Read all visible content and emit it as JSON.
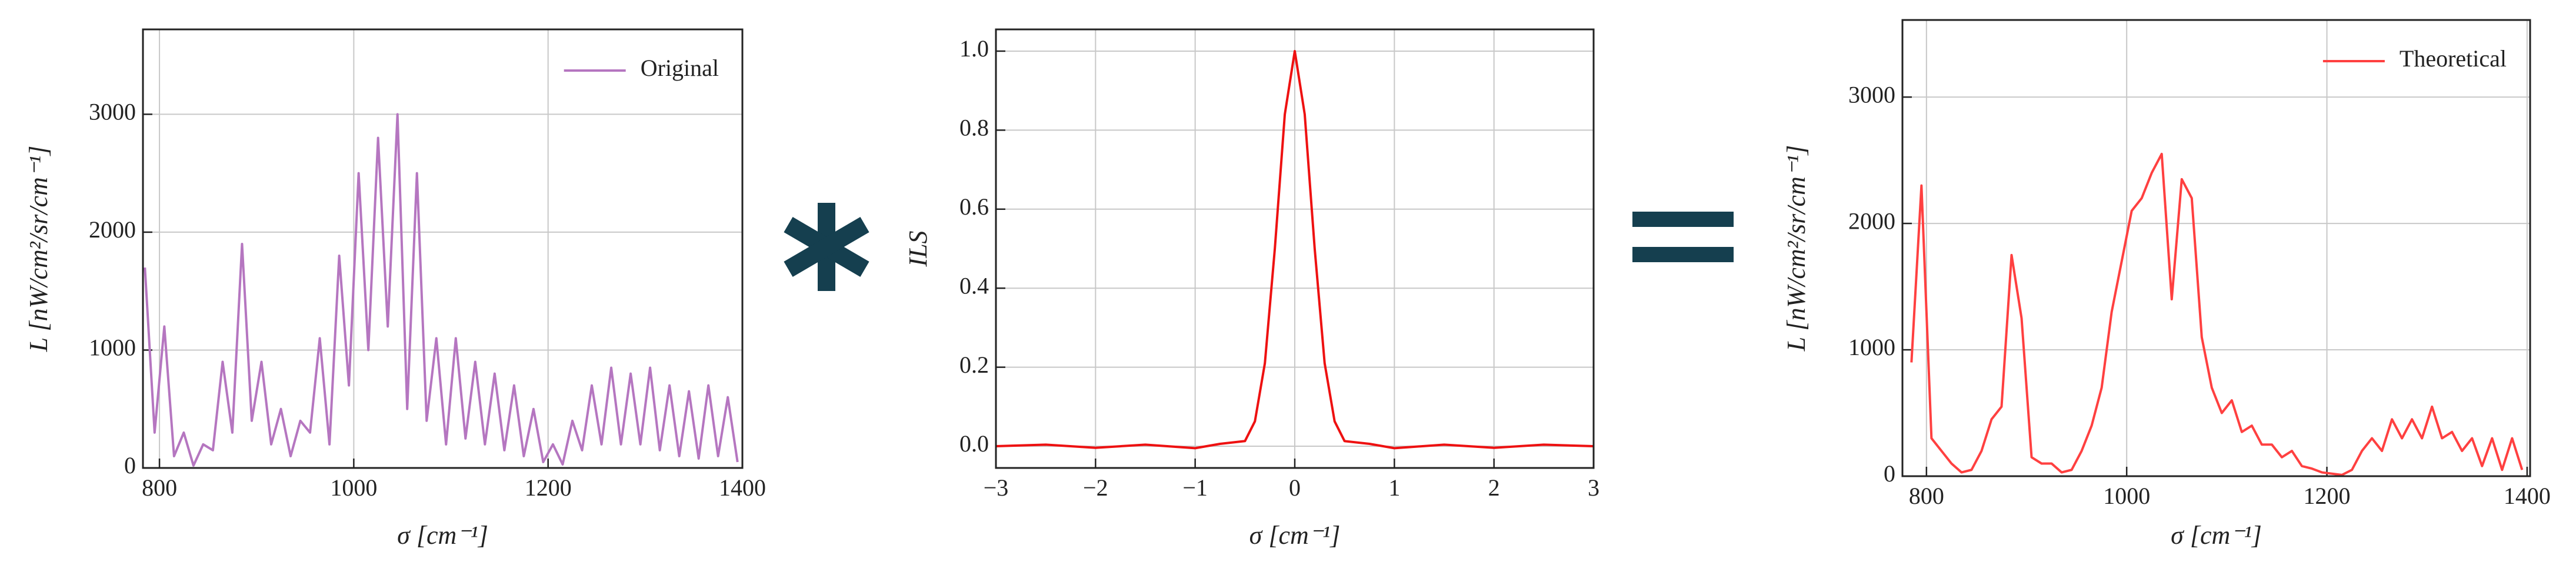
{
  "chart_data": [
    {
      "type": "line",
      "xlabel": "σ [cm⁻¹]",
      "ylabel": "L [nW/cm²/sr/cm⁻¹]",
      "xlim": [
        783,
        1400
      ],
      "ylim": [
        0,
        3720
      ],
      "xticks": [
        800,
        1000,
        1200,
        1400
      ],
      "yticks": [
        0,
        1000,
        2000,
        3000
      ],
      "grid": true,
      "legend": "upper right",
      "x": [
        785,
        795,
        805,
        815,
        825,
        835,
        845,
        855,
        865,
        875,
        885,
        895,
        905,
        915,
        925,
        935,
        945,
        955,
        965,
        975,
        985,
        995,
        1005,
        1015,
        1025,
        1035,
        1045,
        1055,
        1065,
        1075,
        1085,
        1095,
        1105,
        1115,
        1125,
        1135,
        1145,
        1155,
        1165,
        1175,
        1185,
        1195,
        1205,
        1215,
        1225,
        1235,
        1245,
        1255,
        1265,
        1275,
        1285,
        1295,
        1305,
        1315,
        1325,
        1335,
        1345,
        1355,
        1365,
        1375,
        1385,
        1395
      ],
      "series": [
        {
          "name": "Original",
          "color": "#b576c0",
          "values": [
            1700,
            300,
            1200,
            100,
            300,
            20,
            200,
            150,
            900,
            300,
            1900,
            400,
            900,
            200,
            500,
            100,
            400,
            300,
            1100,
            200,
            1800,
            700,
            2500,
            1000,
            2800,
            1200,
            3000,
            500,
            2500,
            400,
            1100,
            200,
            1100,
            250,
            900,
            200,
            800,
            150,
            700,
            100,
            500,
            50,
            200,
            30,
            400,
            150,
            700,
            200,
            850,
            200,
            800,
            200,
            850,
            150,
            700,
            100,
            650,
            80,
            700,
            100,
            600,
            50
          ]
        }
      ]
    },
    {
      "type": "line",
      "xlabel": "σ [cm⁻¹]",
      "ylabel": "ILS",
      "xlim": [
        -3,
        3
      ],
      "ylim": [
        -0.055,
        1.055
      ],
      "xticks": [
        {
          "value": -3,
          "label": "−3"
        },
        {
          "value": -2,
          "label": "−2"
        },
        {
          "value": -1,
          "label": "−1"
        },
        0,
        1,
        2,
        3
      ],
      "yticks": [
        {
          "value": 0,
          "label": "0.0"
        },
        0.2,
        0.4,
        0.6,
        0.8,
        {
          "value": 1,
          "label": "1.0"
        }
      ],
      "grid": true,
      "x": [
        -3,
        -2.5,
        -2,
        -1.5,
        -1,
        -0.75,
        -0.5,
        -0.4,
        -0.3,
        -0.2,
        -0.1,
        0,
        0.1,
        0.2,
        0.3,
        0.4,
        0.5,
        0.75,
        1,
        1.5,
        2,
        2.5,
        3
      ],
      "series": [
        {
          "color": "#ee1111",
          "values": [
            0,
            0.004,
            -0.004,
            0.004,
            -0.005,
            0.006,
            0.013,
            0.063,
            0.21,
            0.5,
            0.84,
            1,
            0.84,
            0.5,
            0.21,
            0.063,
            0.013,
            0.006,
            -0.005,
            0.004,
            -0.004,
            0.004,
            0
          ]
        }
      ]
    },
    {
      "type": "line",
      "xlabel": "σ [cm⁻¹]",
      "ylabel": "L [nW/cm²/sr/cm⁻¹]",
      "xlim": [
        776,
        1403
      ],
      "ylim": [
        0,
        3610
      ],
      "xticks": [
        800,
        1000,
        1200,
        1400
      ],
      "yticks": [
        0,
        1000,
        2000,
        3000
      ],
      "grid": true,
      "legend": "upper right",
      "x": [
        785,
        795,
        805,
        815,
        825,
        835,
        845,
        855,
        865,
        875,
        885,
        895,
        905,
        915,
        925,
        935,
        945,
        955,
        965,
        975,
        985,
        995,
        1005,
        1015,
        1025,
        1035,
        1045,
        1055,
        1065,
        1075,
        1085,
        1095,
        1105,
        1115,
        1125,
        1135,
        1145,
        1155,
        1165,
        1175,
        1185,
        1195,
        1205,
        1215,
        1225,
        1235,
        1245,
        1255,
        1265,
        1275,
        1285,
        1295,
        1305,
        1315,
        1325,
        1335,
        1345,
        1355,
        1365,
        1375,
        1385,
        1395
      ],
      "series": [
        {
          "name": "Theoretical",
          "color": "#ff4040",
          "values": [
            900,
            2300,
            300,
            200,
            100,
            30,
            50,
            200,
            450,
            550,
            1750,
            1250,
            150,
            100,
            100,
            30,
            50,
            200,
            400,
            700,
            1300,
            1700,
            2100,
            2200,
            2400,
            2550,
            1400,
            2350,
            2200,
            1100,
            700,
            500,
            600,
            350,
            400,
            250,
            250,
            150,
            200,
            80,
            60,
            30,
            20,
            10,
            50,
            200,
            300,
            200,
            450,
            300,
            450,
            300,
            550,
            300,
            350,
            200,
            300,
            80,
            300,
            50,
            300,
            50
          ]
        }
      ]
    }
  ]
}
